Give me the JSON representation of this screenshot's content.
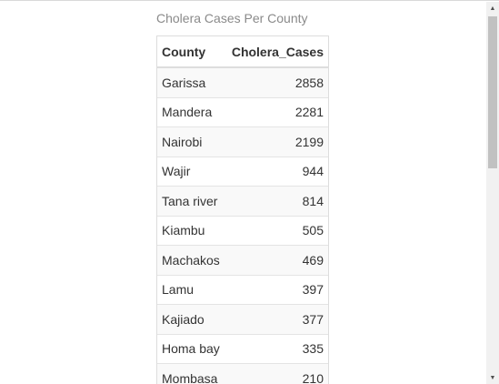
{
  "table": {
    "caption": "Cholera Cases Per County",
    "columns": [
      "County",
      "Cholera_Cases"
    ],
    "rows": [
      {
        "county": "Garissa",
        "cases": "2858"
      },
      {
        "county": "Mandera",
        "cases": "2281"
      },
      {
        "county": "Nairobi",
        "cases": "2199"
      },
      {
        "county": "Wajir",
        "cases": "944"
      },
      {
        "county": "Tana river",
        "cases": "814"
      },
      {
        "county": "Kiambu",
        "cases": "505"
      },
      {
        "county": "Machakos",
        "cases": "469"
      },
      {
        "county": "Lamu",
        "cases": "397"
      },
      {
        "county": "Kajiado",
        "cases": "377"
      },
      {
        "county": "Homa bay",
        "cases": "335"
      },
      {
        "county": "Mombasa",
        "cases": "210"
      }
    ]
  },
  "scrollbar": {
    "up_icon": "up-arrow-icon",
    "down_icon": "down-arrow-icon"
  }
}
